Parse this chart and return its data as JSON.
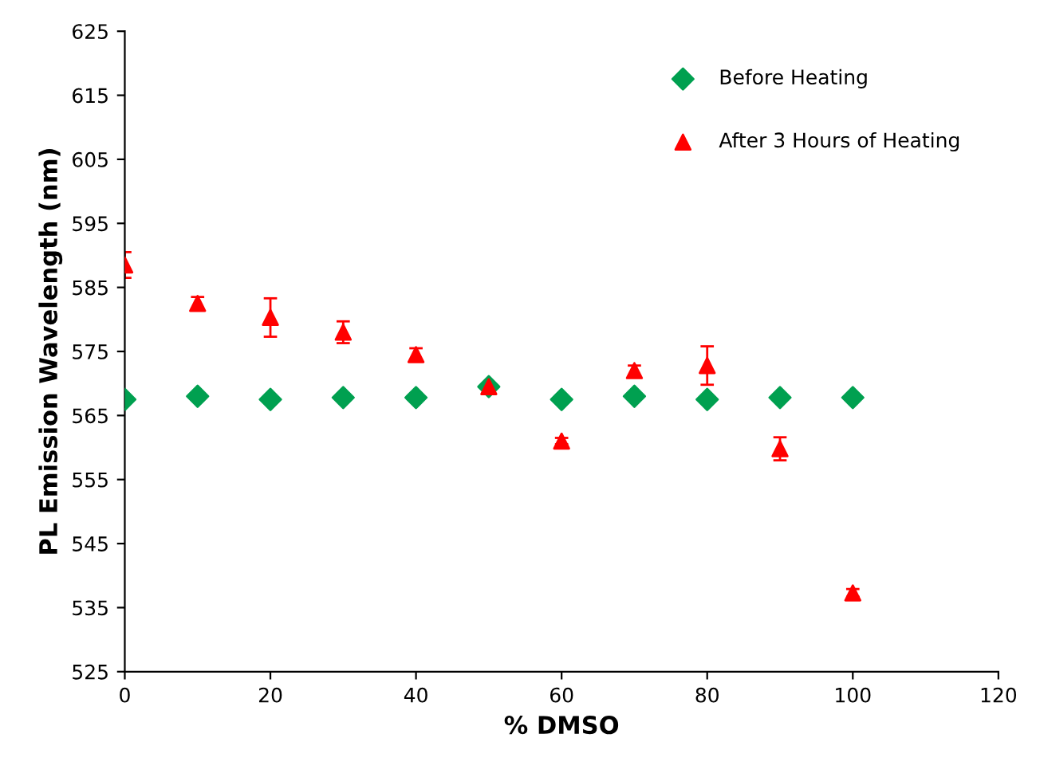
{
  "chart_data": {
    "type": "scatter",
    "xlabel": "% DMSO",
    "ylabel": "PL Emission Wavelength (nm)",
    "x": [
      0,
      10,
      20,
      30,
      40,
      50,
      60,
      70,
      80,
      90,
      100
    ],
    "series": [
      {
        "name": "Before Heating",
        "color": "#00a050",
        "marker": "diamond",
        "values": [
          567.5,
          568,
          567.5,
          567.8,
          567.8,
          569.5,
          567.5,
          568,
          567.5,
          567.8,
          567.8
        ]
      },
      {
        "name": "After 3 Hours of Heating",
        "color": "#ff0000",
        "marker": "triangle",
        "values": [
          588.5,
          582.5,
          580.3,
          578,
          574.5,
          569.5,
          561,
          572,
          572.8,
          559.8,
          537.3
        ],
        "errors": [
          2,
          1,
          3,
          1.7,
          1,
          0.5,
          0.5,
          0.8,
          3,
          1.8,
          0.6
        ]
      }
    ],
    "xlim": [
      0,
      120
    ],
    "xticks": [
      0,
      20,
      40,
      60,
      80,
      100,
      120
    ],
    "ylim": [
      525,
      625
    ],
    "yticks": [
      525,
      535,
      545,
      555,
      565,
      575,
      585,
      595,
      605,
      615,
      625
    ],
    "grid": false,
    "legend": "top right"
  }
}
